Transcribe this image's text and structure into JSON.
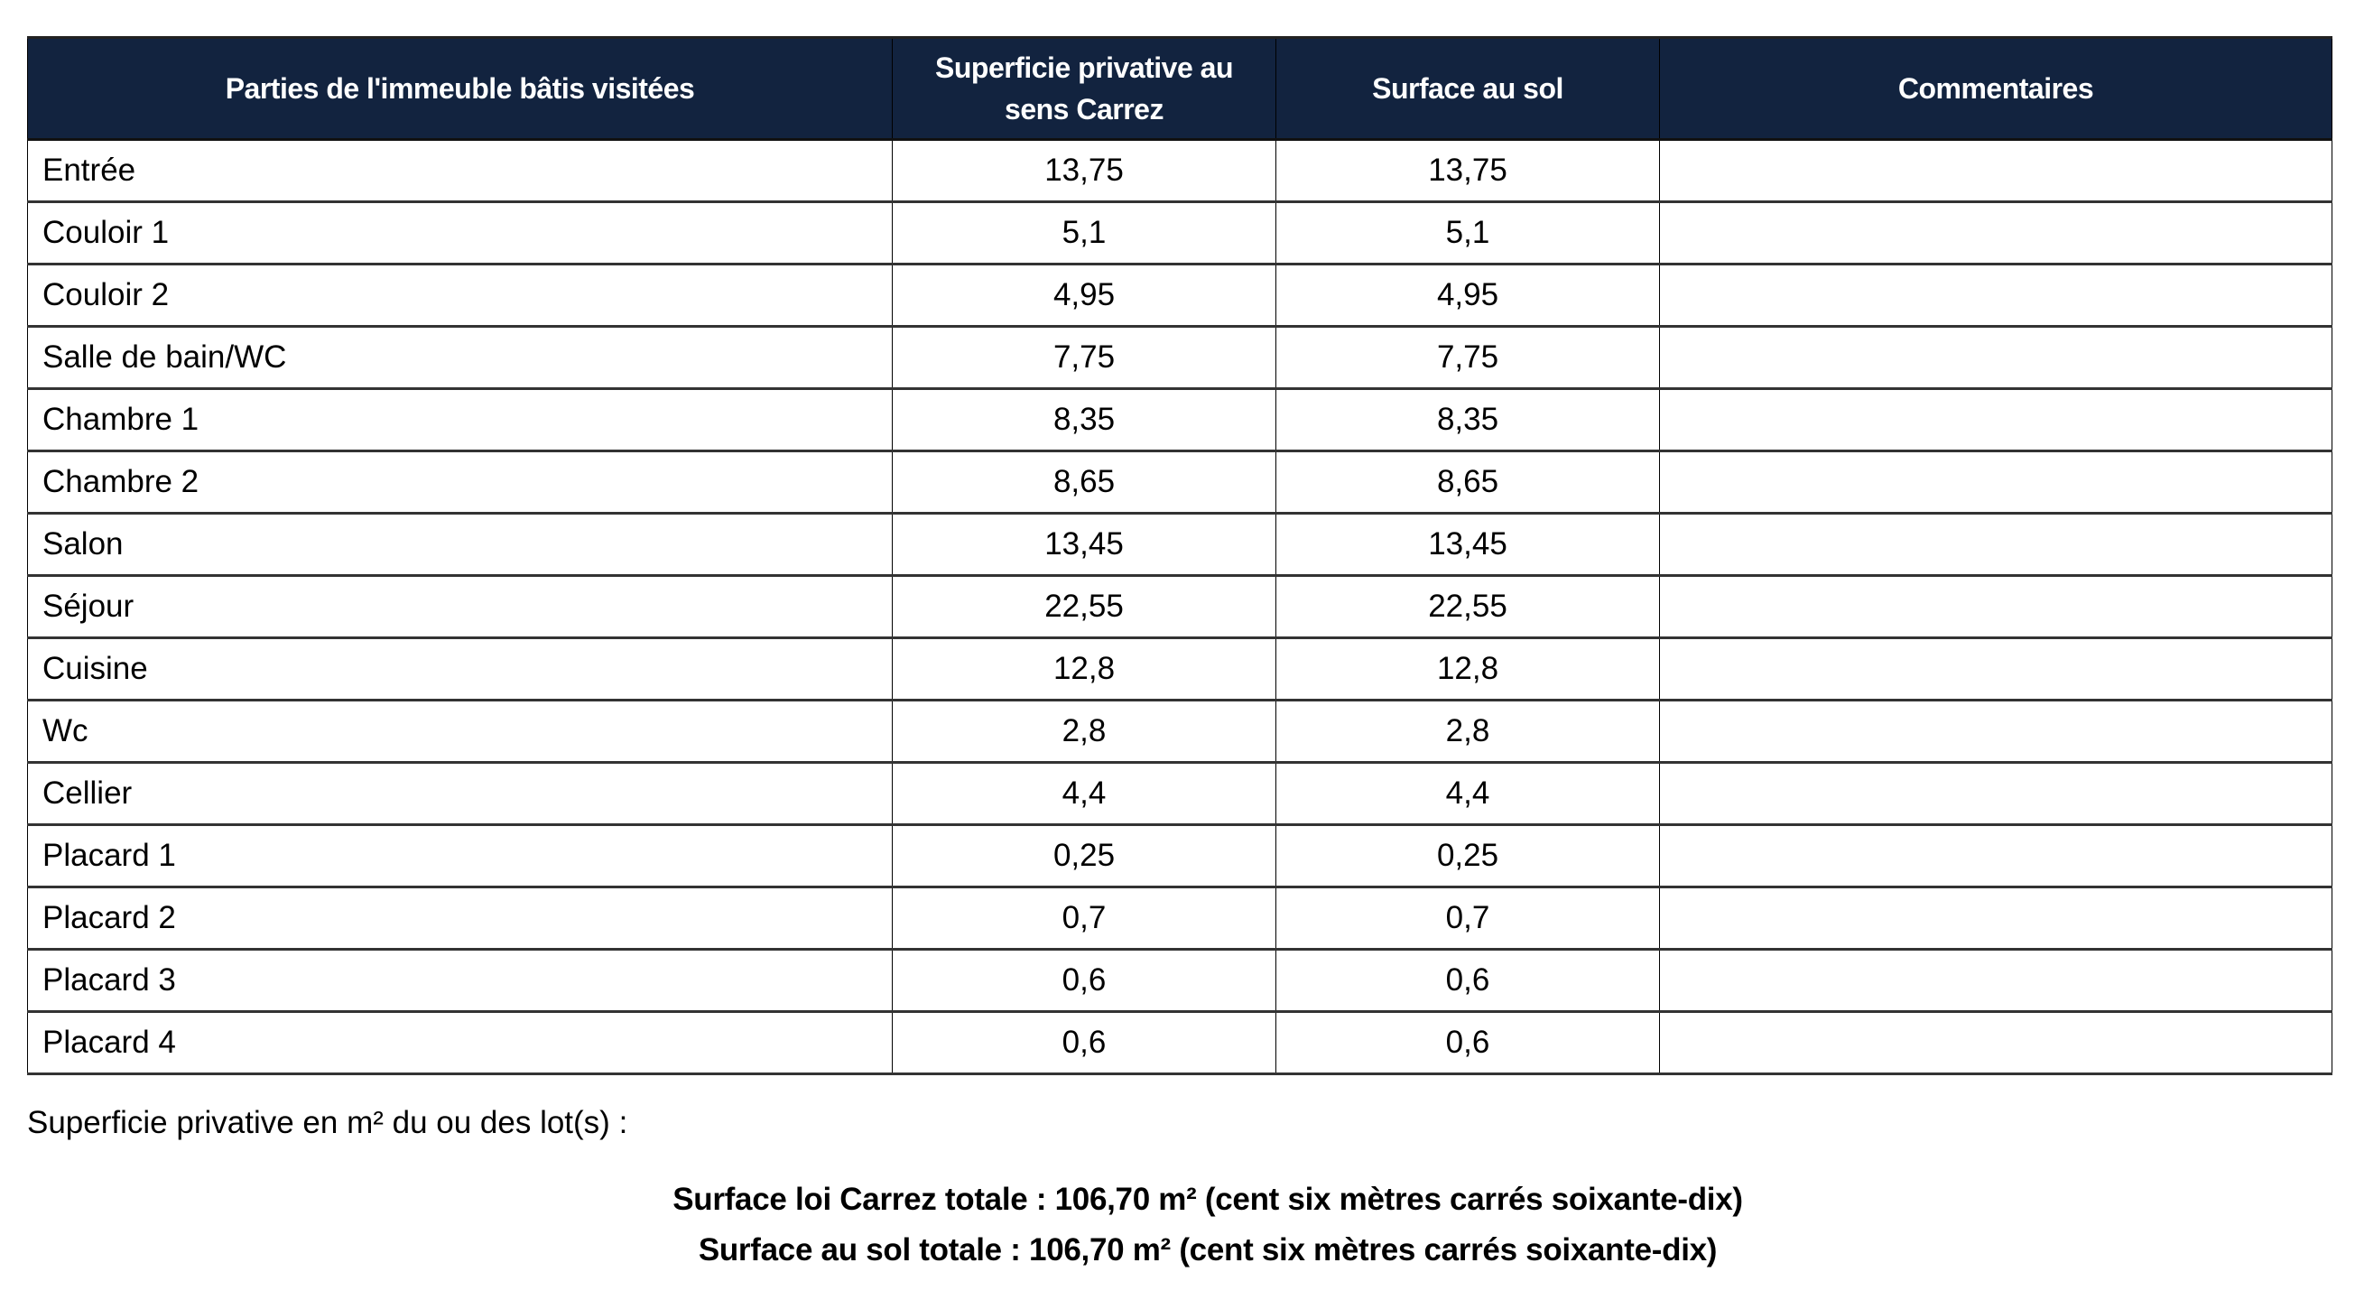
{
  "table": {
    "headers": [
      "Parties de l'immeuble bâtis visitées",
      "Superficie privative au sens Carrez",
      "Surface au sol",
      "Commentaires"
    ],
    "rows": [
      {
        "name": "Entrée",
        "carrez": "13,75",
        "sol": "13,75",
        "comment": ""
      },
      {
        "name": "Couloir 1",
        "carrez": "5,1",
        "sol": "5,1",
        "comment": ""
      },
      {
        "name": "Couloir 2",
        "carrez": "4,95",
        "sol": "4,95",
        "comment": ""
      },
      {
        "name": "Salle de bain/WC",
        "carrez": "7,75",
        "sol": "7,75",
        "comment": ""
      },
      {
        "name": "Chambre 1",
        "carrez": "8,35",
        "sol": "8,35",
        "comment": ""
      },
      {
        "name": "Chambre 2",
        "carrez": "8,65",
        "sol": "8,65",
        "comment": ""
      },
      {
        "name": "Salon",
        "carrez": "13,45",
        "sol": "13,45",
        "comment": ""
      },
      {
        "name": "Séjour",
        "carrez": "22,55",
        "sol": "22,55",
        "comment": ""
      },
      {
        "name": "Cuisine",
        "carrez": "12,8",
        "sol": "12,8",
        "comment": ""
      },
      {
        "name": "Wc",
        "carrez": "2,8",
        "sol": "2,8",
        "comment": ""
      },
      {
        "name": "Cellier",
        "carrez": "4,4",
        "sol": "4,4",
        "comment": ""
      },
      {
        "name": "Placard 1",
        "carrez": "0,25",
        "sol": "0,25",
        "comment": ""
      },
      {
        "name": "Placard 2",
        "carrez": "0,7",
        "sol": "0,7",
        "comment": ""
      },
      {
        "name": "Placard 3",
        "carrez": "0,6",
        "sol": "0,6",
        "comment": ""
      },
      {
        "name": "Placard 4",
        "carrez": "0,6",
        "sol": "0,6",
        "comment": ""
      }
    ]
  },
  "summary": {
    "label": "Superficie privative en m² du ou des lot(s) :",
    "carrez_total": "Surface loi Carrez totale : 106,70 m² (cent six mètres carrés soixante-dix)",
    "sol_total": "Surface au sol totale : 106,70 m² (cent six mètres carrés soixante-dix)"
  },
  "colors": {
    "header_bg": "#12233f",
    "header_text": "#ffffff"
  }
}
